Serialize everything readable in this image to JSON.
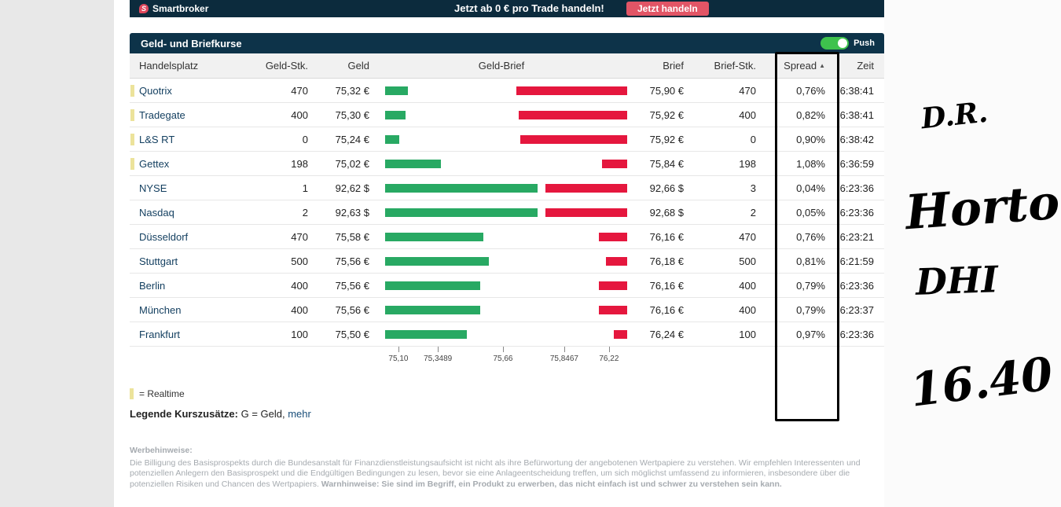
{
  "topbar": {
    "brand": "Smartbroker",
    "brand_initial": "S",
    "promo_text": "Jetzt ab 0 € pro Trade handeln!",
    "cta_label": "Jetzt handeln"
  },
  "panel": {
    "title": "Geld- und Briefkurse",
    "push_label": "Push",
    "push_state": "on"
  },
  "table": {
    "columns": [
      "Handelsplatz",
      "Geld-Stk.",
      "Geld",
      "Geld-Brief",
      "Brief",
      "Brief-Stk.",
      "Spread",
      "Zeit"
    ],
    "sort_column": "Spread",
    "sort_indicator": "▲",
    "rows": [
      {
        "realtime": true,
        "name": "Quotrix",
        "geld_stk": "470",
        "geld": "75,32 €",
        "brief": "75,90 €",
        "brief_stk": "470",
        "spread": "0,76%",
        "zeit": "6:38:41",
        "green_pct": 9.4,
        "red_pct": 45.8
      },
      {
        "realtime": true,
        "name": "Tradegate",
        "geld_stk": "400",
        "geld": "75,30 €",
        "brief": "75,92 €",
        "brief_stk": "400",
        "spread": "0,82%",
        "zeit": "6:38:41",
        "green_pct": 8.4,
        "red_pct": 44.8
      },
      {
        "realtime": true,
        "name": "L&S RT",
        "geld_stk": "0",
        "geld": "75,24 €",
        "brief": "75,92 €",
        "brief_stk": "0",
        "spread": "0,90%",
        "zeit": "6:38:42",
        "green_pct": 5.8,
        "red_pct": 44.2
      },
      {
        "realtime": true,
        "name": "Gettex",
        "geld_stk": "198",
        "geld": "75,02 €",
        "brief": "75,84 €",
        "brief_stk": "198",
        "spread": "1,08%",
        "zeit": "6:36:59",
        "green_pct": 23.1,
        "red_pct": 10.4
      },
      {
        "realtime": false,
        "name": "NYSE",
        "geld_stk": "1",
        "geld": "92,62 $",
        "brief": "92,66 $",
        "brief_stk": "3",
        "spread": "0,04%",
        "zeit": "6:23:36",
        "green_pct": 63.0,
        "red_pct": 33.8
      },
      {
        "realtime": false,
        "name": "Nasdaq",
        "geld_stk": "2",
        "geld": "92,63 $",
        "brief": "92,68 $",
        "brief_stk": "2",
        "spread": "0,05%",
        "zeit": "6:23:36",
        "green_pct": 63.0,
        "red_pct": 33.8
      },
      {
        "realtime": false,
        "name": "Düsseldorf",
        "geld_stk": "470",
        "geld": "75,58 €",
        "brief": "76,16 €",
        "brief_stk": "470",
        "spread": "0,76%",
        "zeit": "6:23:21",
        "green_pct": 40.6,
        "red_pct": 11.7
      },
      {
        "realtime": false,
        "name": "Stuttgart",
        "geld_stk": "500",
        "geld": "75,56 €",
        "brief": "76,18 €",
        "brief_stk": "500",
        "spread": "0,81%",
        "zeit": "6:21:59",
        "green_pct": 42.9,
        "red_pct": 8.8
      },
      {
        "realtime": false,
        "name": "Berlin",
        "geld_stk": "400",
        "geld": "75,56 €",
        "brief": "76,16 €",
        "brief_stk": "400",
        "spread": "0,79%",
        "zeit": "6:23:36",
        "green_pct": 39.3,
        "red_pct": 11.7
      },
      {
        "realtime": false,
        "name": "München",
        "geld_stk": "400",
        "geld": "75,56 €",
        "brief": "76,16 €",
        "brief_stk": "400",
        "spread": "0,79%",
        "zeit": "6:23:37",
        "green_pct": 39.3,
        "red_pct": 11.7
      },
      {
        "realtime": false,
        "name": "Frankfurt",
        "geld_stk": "100",
        "geld": "75,50 €",
        "brief": "76,24 €",
        "brief_stk": "100",
        "spread": "0,97%",
        "zeit": "6:23:36",
        "green_pct": 33.8,
        "red_pct": 5.5
      }
    ],
    "axis_ticks": [
      {
        "label": "75,10",
        "pos_pct": 5.5
      },
      {
        "label": "75,3489",
        "pos_pct": 21.8
      },
      {
        "label": "75,66",
        "pos_pct": 48.7
      },
      {
        "label": "75,8467",
        "pos_pct": 74.0
      },
      {
        "label": "76,22",
        "pos_pct": 92.5
      }
    ]
  },
  "legend": {
    "realtime_text": "= Realtime",
    "kurszusaetze_label": "Legende Kurszusätze:",
    "kurszusaetze_text": " G = Geld, ",
    "more_link": "mehr"
  },
  "disclaimer": {
    "title": "Werbehinweise:",
    "body": "Die Billigung des Basisprospekts durch die Bundesanstalt für Finanzdienstleistungsaufsicht ist nicht als ihre Befürwortung der angebotenen Wertpapiere zu verstehen. Wir empfehlen Interessenten und potenziellen Anlegern den Basisprospekt und die Endgültigen Bedingungen zu lesen, bevor sie eine Anlageentscheidung treffen, um sich möglichst umfassend zu informieren, insbesondere über die potenziellen Risiken und Chancen des Wertpapiers. ",
    "warn": "Warnhinweise: Sie sind im Begriff, ein Produkt zu erwerben, das nicht einfach ist und schwer zu verstehen sein kann."
  },
  "annotations": {
    "note1": "D.R.",
    "note2": "Horton",
    "note3": "DHI",
    "note4": "16.40"
  },
  "colors": {
    "navy": "#0d3349",
    "topbar_navy": "#0c2b3d",
    "cta_red": "#e25566",
    "bar_green": "#28a963",
    "bar_red": "#e5173e",
    "toggle_green": "#3ec24d",
    "realtime_yellow": "#ece39b",
    "venue_blue": "#123e5f",
    "annotation_black": "#000000"
  }
}
